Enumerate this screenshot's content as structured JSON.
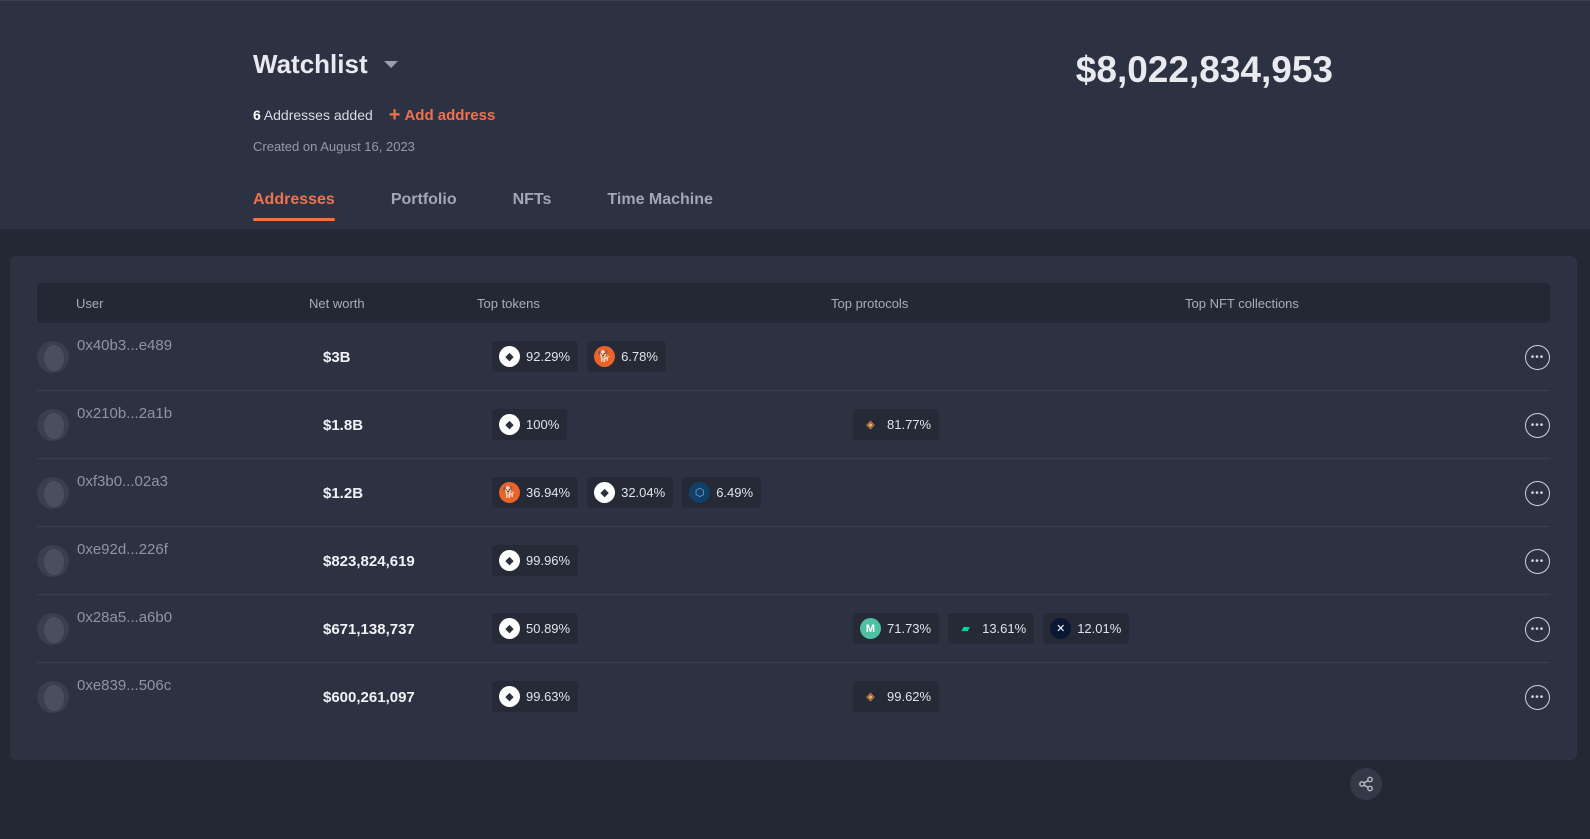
{
  "header": {
    "title": "Watchlist",
    "address_count": "6",
    "addresses_added_label": "Addresses added",
    "add_address_label": "Add address",
    "created": "Created on August 16, 2023",
    "total_net_worth": "$8,022,834,953"
  },
  "tabs": [
    {
      "label": "Addresses",
      "active": true
    },
    {
      "label": "Portfolio",
      "active": false
    },
    {
      "label": "NFTs",
      "active": false
    },
    {
      "label": "Time Machine",
      "active": false
    }
  ],
  "table": {
    "columns": [
      "User",
      "Net worth",
      "Top tokens",
      "Top protocols",
      "Top NFT collections"
    ],
    "rows": [
      {
        "address": "0x40b3...e489",
        "net_worth": "$3B",
        "tokens": [
          {
            "icon": "eth-icon",
            "pct": "92.29%"
          },
          {
            "icon": "shib-icon",
            "pct": "6.78%"
          }
        ],
        "protocols": []
      },
      {
        "address": "0x210b...2a1b",
        "net_worth": "$1.8B",
        "tokens": [
          {
            "icon": "eth-icon",
            "pct": "100%"
          }
        ],
        "protocols": [
          {
            "icon": "lido-icon",
            "pct": "81.77%"
          }
        ]
      },
      {
        "address": "0xf3b0...02a3",
        "net_worth": "$1.2B",
        "tokens": [
          {
            "icon": "shib-icon",
            "pct": "36.94%"
          },
          {
            "icon": "eth-icon",
            "pct": "32.04%"
          },
          {
            "icon": "cro-icon",
            "pct": "6.49%"
          }
        ],
        "protocols": []
      },
      {
        "address": "0xe92d...226f",
        "net_worth": "$823,824,619",
        "tokens": [
          {
            "icon": "eth-icon",
            "pct": "99.96%"
          }
        ],
        "protocols": []
      },
      {
        "address": "0x28a5...a6b0",
        "net_worth": "$671,138,737",
        "tokens": [
          {
            "icon": "eth-icon",
            "pct": "50.89%"
          }
        ],
        "protocols": [
          {
            "icon": "maker-icon",
            "pct": "71.73%"
          },
          {
            "icon": "compound-icon",
            "pct": "13.61%"
          },
          {
            "icon": "morpho-icon",
            "pct": "12.01%"
          }
        ]
      },
      {
        "address": "0xe839...506c",
        "net_worth": "$600,261,097",
        "tokens": [
          {
            "icon": "eth-icon",
            "pct": "99.63%"
          }
        ],
        "protocols": [
          {
            "icon": "lido-icon",
            "pct": "99.62%"
          }
        ]
      }
    ]
  },
  "colors": {
    "accent": "#f0714f",
    "background": "#242835",
    "panel": "#2d3242"
  }
}
